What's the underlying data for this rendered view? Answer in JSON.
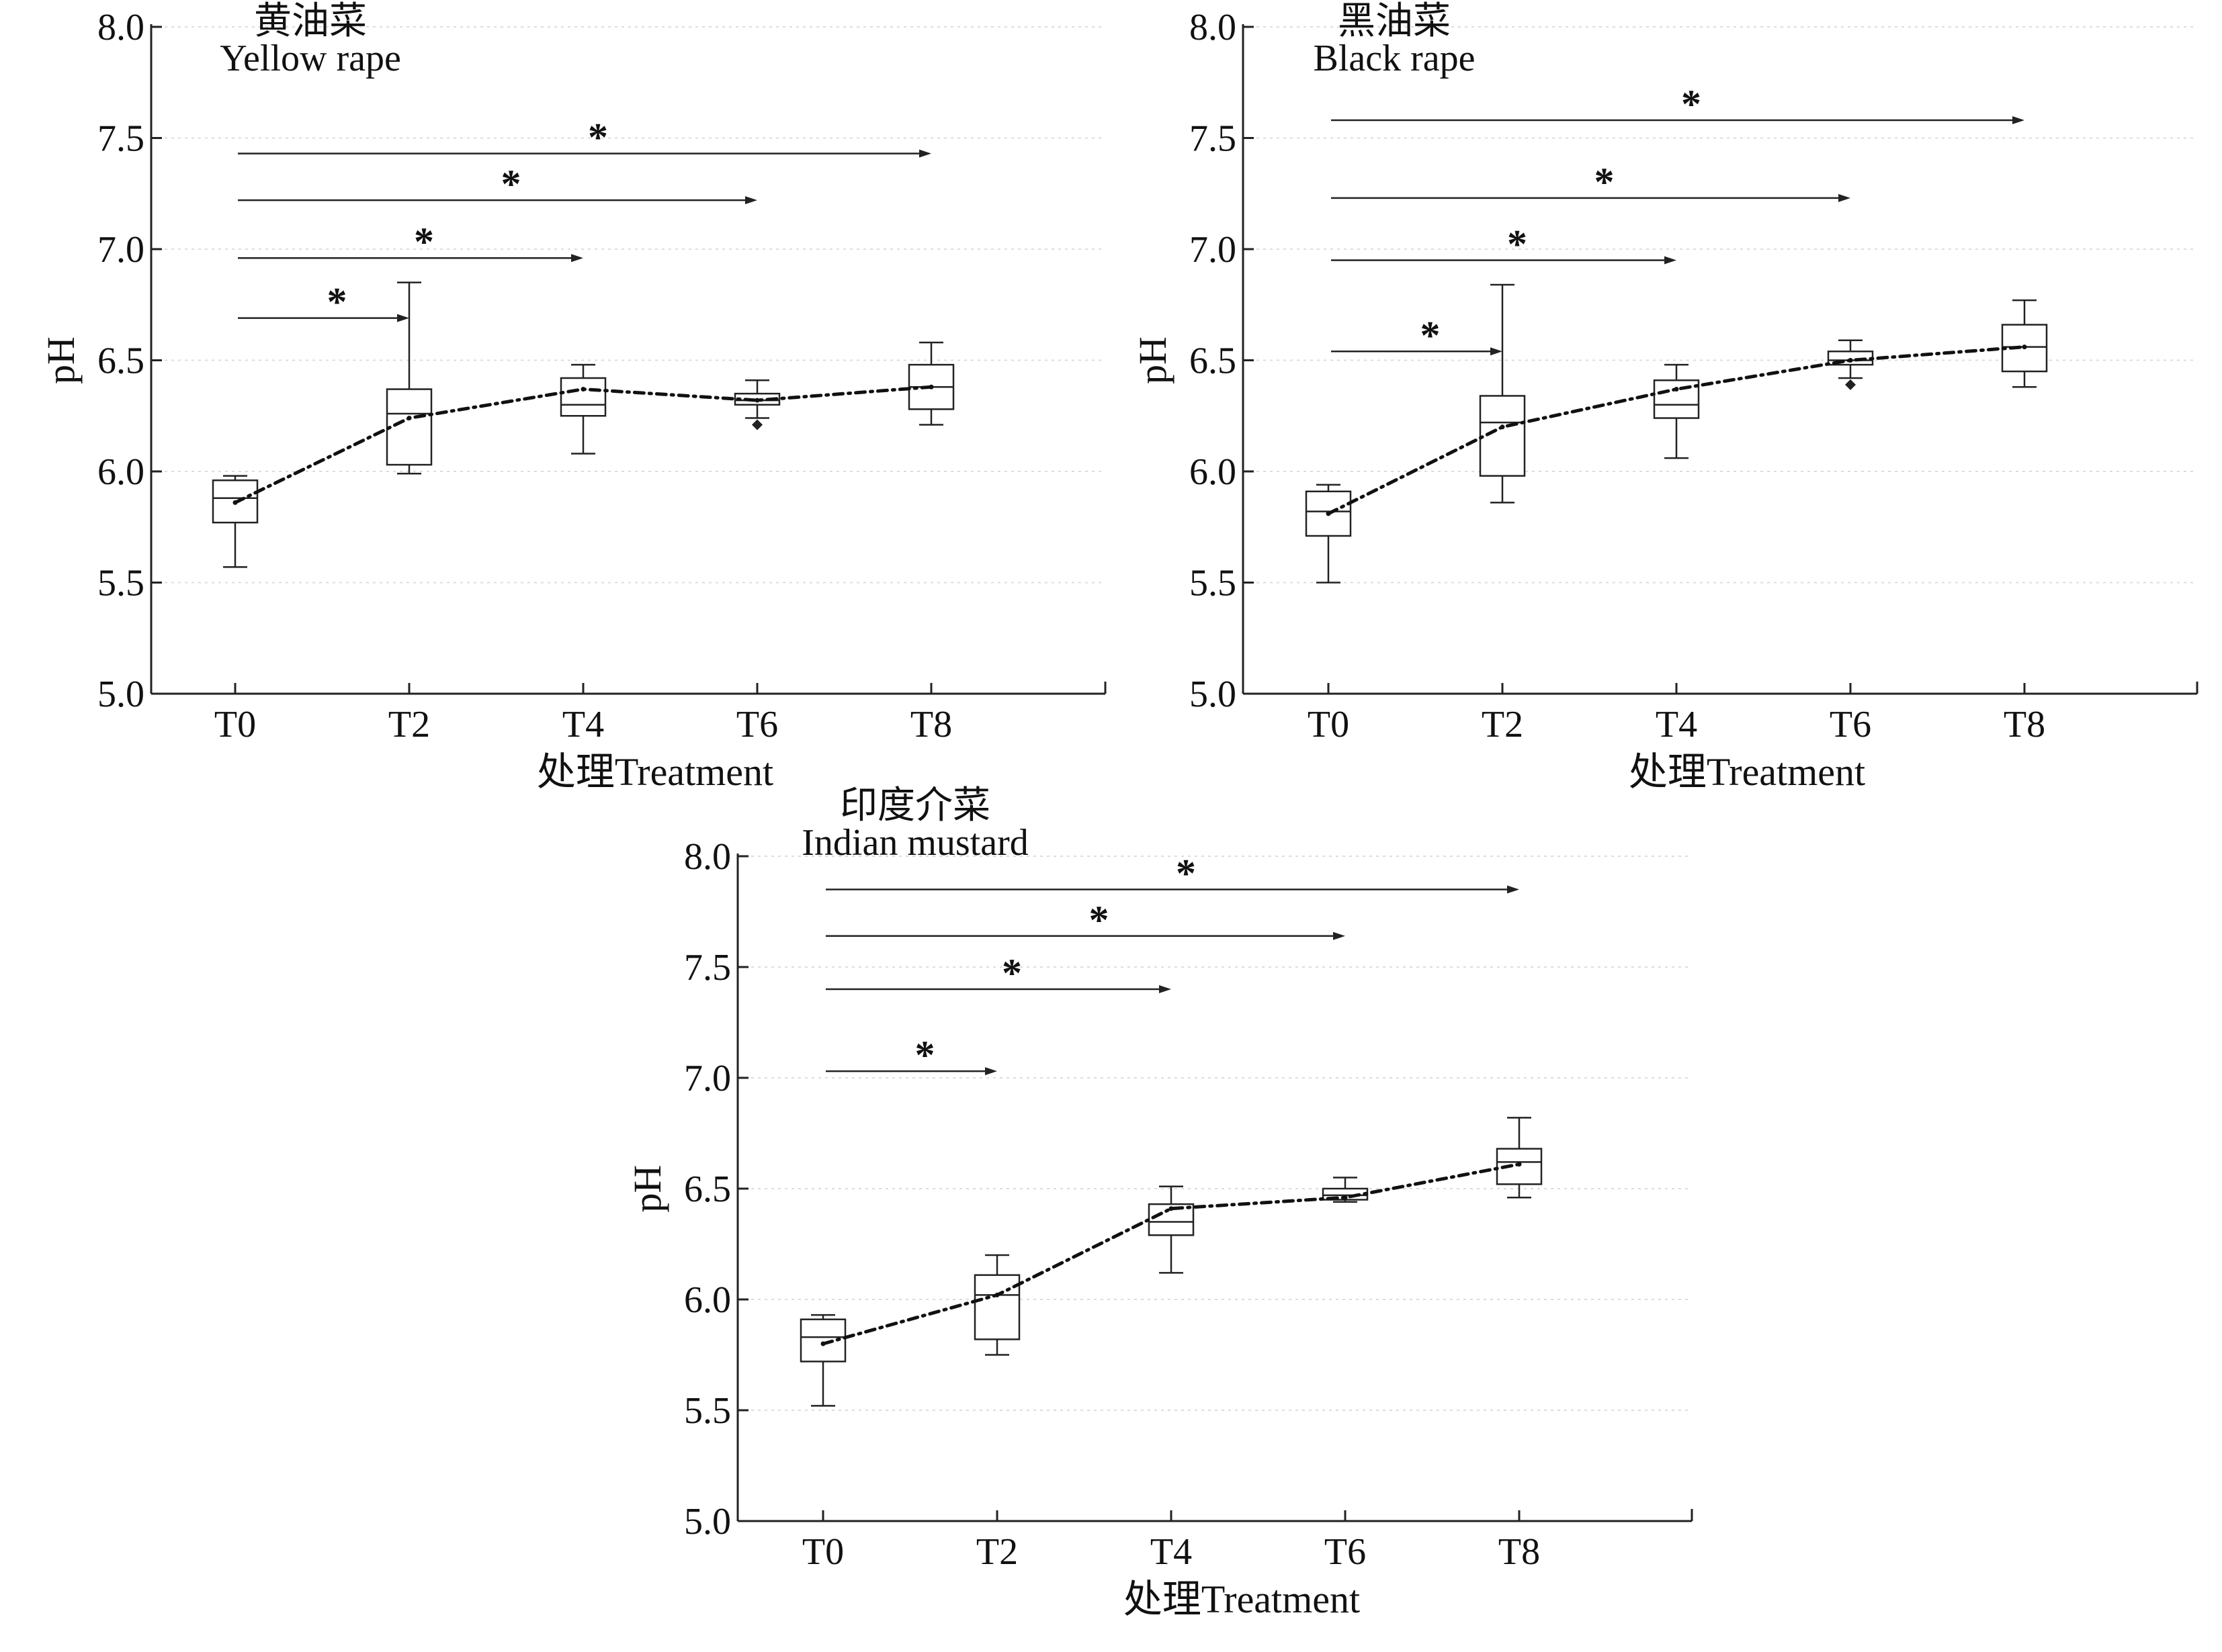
{
  "chart_data": [
    {
      "type": "box",
      "title_cn": "黄油菜",
      "title_en": "Yellow rape",
      "xlabel": "处理Treatment",
      "ylabel": "pH",
      "ylim": [
        5.0,
        8.0
      ],
      "yticks": [
        "5.0",
        "5.5",
        "6.0",
        "6.5",
        "7.0",
        "7.5",
        "8.0"
      ],
      "categories": [
        "T0",
        "T2",
        "T4",
        "T6",
        "T8"
      ],
      "boxes": [
        {
          "min": 5.57,
          "q1": 5.77,
          "median": 5.88,
          "q3": 5.96,
          "max": 5.98,
          "mean": 5.86,
          "outliers": []
        },
        {
          "min": 5.99,
          "q1": 6.03,
          "median": 6.26,
          "q3": 6.37,
          "max": 6.85,
          "mean": 6.24,
          "outliers": []
        },
        {
          "min": 6.08,
          "q1": 6.25,
          "median": 6.3,
          "q3": 6.42,
          "max": 6.48,
          "mean": 6.37,
          "outliers": []
        },
        {
          "min": 6.24,
          "q1": 6.3,
          "median": 6.32,
          "q3": 6.35,
          "max": 6.41,
          "mean": 6.32,
          "outliers": [
            6.21
          ]
        },
        {
          "min": 6.21,
          "q1": 6.28,
          "median": 6.38,
          "q3": 6.48,
          "max": 6.58,
          "mean": 6.38,
          "outliers": []
        }
      ],
      "comparisons": [
        {
          "from": "T0",
          "to": "T2",
          "y": 6.69,
          "label": "*"
        },
        {
          "from": "T0",
          "to": "T4",
          "y": 6.96,
          "label": "*"
        },
        {
          "from": "T0",
          "to": "T6",
          "y": 7.22,
          "label": "*"
        },
        {
          "from": "T0",
          "to": "T8",
          "y": 7.43,
          "label": "*"
        }
      ]
    },
    {
      "type": "box",
      "title_cn": "黑油菜",
      "title_en": "Black rape",
      "xlabel": "处理Treatment",
      "ylabel": "pH",
      "ylim": [
        5.0,
        8.0
      ],
      "yticks": [
        "5.0",
        "5.5",
        "6.0",
        "6.5",
        "7.0",
        "7.5",
        "8.0"
      ],
      "categories": [
        "T0",
        "T2",
        "T4",
        "T6",
        "T8"
      ],
      "boxes": [
        {
          "min": 5.5,
          "q1": 5.71,
          "median": 5.82,
          "q3": 5.91,
          "max": 5.94,
          "mean": 5.81,
          "outliers": []
        },
        {
          "min": 5.86,
          "q1": 5.98,
          "median": 6.22,
          "q3": 6.34,
          "max": 6.84,
          "mean": 6.2,
          "outliers": []
        },
        {
          "min": 6.06,
          "q1": 6.24,
          "median": 6.3,
          "q3": 6.41,
          "max": 6.48,
          "mean": 6.37,
          "outliers": []
        },
        {
          "min": 6.42,
          "q1": 6.48,
          "median": 6.5,
          "q3": 6.54,
          "max": 6.59,
          "mean": 6.5,
          "outliers": [
            6.39
          ]
        },
        {
          "min": 6.38,
          "q1": 6.45,
          "median": 6.56,
          "q3": 6.66,
          "max": 6.77,
          "mean": 6.56,
          "outliers": []
        }
      ],
      "comparisons": [
        {
          "from": "T0",
          "to": "T2",
          "y": 6.54,
          "label": "*"
        },
        {
          "from": "T0",
          "to": "T4",
          "y": 6.95,
          "label": "*"
        },
        {
          "from": "T0",
          "to": "T6",
          "y": 7.23,
          "label": "*"
        },
        {
          "from": "T0",
          "to": "T8",
          "y": 7.58,
          "label": "*"
        }
      ]
    },
    {
      "type": "box",
      "title_cn": "印度介菜",
      "title_en": "Indian mustard",
      "xlabel": "处理Treatment",
      "ylabel": "pH",
      "ylim": [
        5.0,
        8.0
      ],
      "yticks": [
        "5.0",
        "5.5",
        "6.0",
        "6.5",
        "7.0",
        "7.5",
        "8.0"
      ],
      "categories": [
        "T0",
        "T2",
        "T4",
        "T6",
        "T8"
      ],
      "boxes": [
        {
          "min": 5.52,
          "q1": 5.72,
          "median": 5.83,
          "q3": 5.91,
          "max": 5.93,
          "mean": 5.8,
          "outliers": []
        },
        {
          "min": 5.75,
          "q1": 5.82,
          "median": 6.02,
          "q3": 6.11,
          "max": 6.2,
          "mean": 6.02,
          "outliers": []
        },
        {
          "min": 6.12,
          "q1": 6.29,
          "median": 6.35,
          "q3": 6.43,
          "max": 6.51,
          "mean": 6.41,
          "outliers": []
        },
        {
          "min": 6.44,
          "q1": 6.45,
          "median": 6.47,
          "q3": 6.5,
          "max": 6.55,
          "mean": 6.46,
          "outliers": []
        },
        {
          "min": 6.46,
          "q1": 6.52,
          "median": 6.62,
          "q3": 6.68,
          "max": 6.82,
          "mean": 6.61,
          "outliers": []
        }
      ],
      "comparisons": [
        {
          "from": "T0",
          "to": "T2",
          "y": 7.03,
          "label": "*"
        },
        {
          "from": "T0",
          "to": "T4",
          "y": 7.4,
          "label": "*"
        },
        {
          "from": "T0",
          "to": "T6",
          "y": 7.64,
          "label": "*"
        },
        {
          "from": "T0",
          "to": "T8",
          "y": 7.85,
          "label": "*"
        }
      ]
    }
  ]
}
